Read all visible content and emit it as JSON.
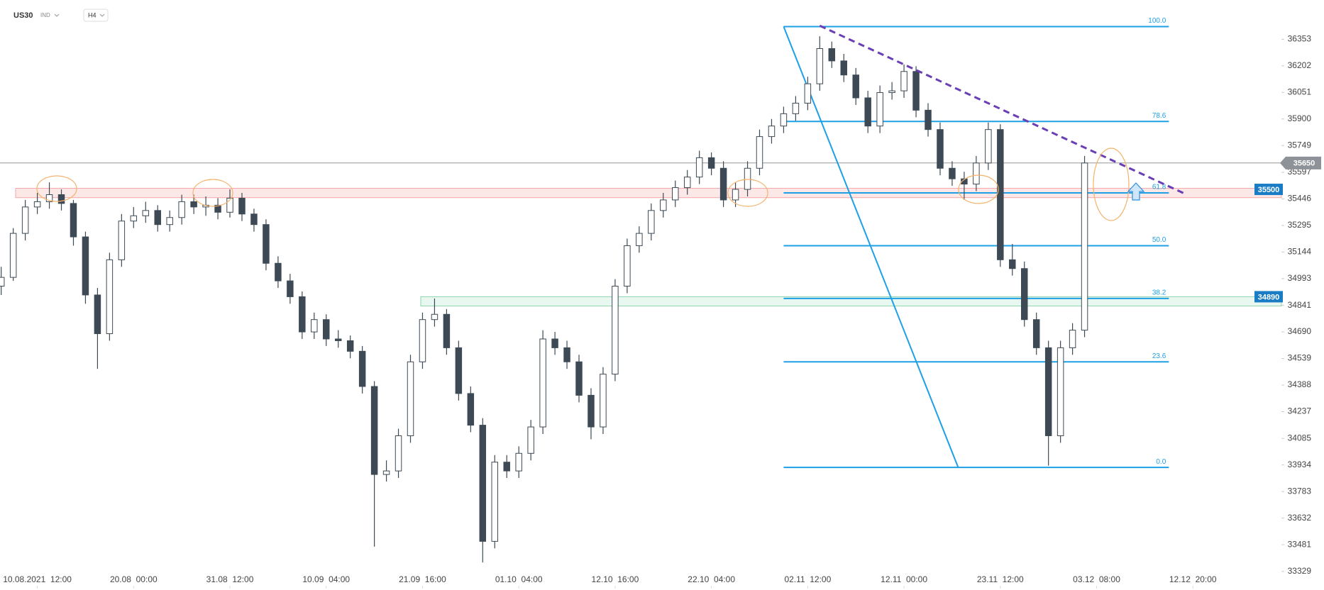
{
  "header": {
    "symbol": "US30",
    "market": "IND",
    "interval": "H4"
  },
  "chart_data": {
    "type": "candlestick",
    "ylim": [
      33300,
      36560
    ],
    "xlim": [
      -0.1,
      106
    ],
    "yticks": [
      36353,
      36202,
      36051,
      35900,
      35749,
      35597,
      35446,
      35295,
      35144,
      34993,
      34841,
      34690,
      34539,
      34388,
      34237,
      34085,
      33934,
      33783,
      33632,
      33481,
      33329
    ],
    "xticks": [
      {
        "value": 3,
        "label": "10.08.2021  12:00"
      },
      {
        "value": 11,
        "label": "20.08  00:00"
      },
      {
        "value": 19,
        "label": "31.08  12:00"
      },
      {
        "value": 27,
        "label": "10.09  04:00"
      },
      {
        "value": 35,
        "label": "21.09  16:00"
      },
      {
        "value": 43,
        "label": "01.10  04:00"
      },
      {
        "value": 51,
        "label": "12.10  16:00"
      },
      {
        "value": 59,
        "label": "22.10  04:00"
      },
      {
        "value": 67,
        "label": "02.11  12:00"
      },
      {
        "value": 75,
        "label": "12.11  00:00"
      },
      {
        "value": 83,
        "label": "23.11  12:00"
      },
      {
        "value": 91,
        "label": "03.12  08:00"
      },
      {
        "value": 99,
        "label": "12.12  20:00"
      }
    ],
    "up_color": "#ffffff",
    "down_color": "#3d4a55",
    "wick_color": "#3d4a55",
    "candles": [
      [
        34950,
        35060,
        34900,
        35000
      ],
      [
        35000,
        35280,
        34980,
        35250
      ],
      [
        35250,
        35440,
        35210,
        35400
      ],
      [
        35400,
        35480,
        35360,
        35430
      ],
      [
        35430,
        35540,
        35390,
        35470
      ],
      [
        35470,
        35500,
        35380,
        35420
      ],
      [
        35420,
        35440,
        35180,
        35230
      ],
      [
        35230,
        35260,
        34850,
        34900
      ],
      [
        34900,
        34940,
        34480,
        34680
      ],
      [
        34680,
        35140,
        34640,
        35100
      ],
      [
        35100,
        35360,
        35060,
        35320
      ],
      [
        35320,
        35400,
        35280,
        35350
      ],
      [
        35350,
        35430,
        35310,
        35380
      ],
      [
        35380,
        35410,
        35260,
        35300
      ],
      [
        35300,
        35380,
        35260,
        35340
      ],
      [
        35340,
        35470,
        35300,
        35430
      ],
      [
        35430,
        35470,
        35360,
        35400
      ],
      [
        35400,
        35460,
        35350,
        35410
      ],
      [
        35410,
        35450,
        35330,
        35370
      ],
      [
        35370,
        35500,
        35340,
        35450
      ],
      [
        35450,
        35480,
        35320,
        35360
      ],
      [
        35360,
        35390,
        35260,
        35300
      ],
      [
        35300,
        35330,
        35040,
        35080
      ],
      [
        35080,
        35120,
        34940,
        34980
      ],
      [
        34980,
        35020,
        34850,
        34890
      ],
      [
        34890,
        34920,
        34650,
        34690
      ],
      [
        34690,
        34800,
        34650,
        34760
      ],
      [
        34760,
        34790,
        34610,
        34650
      ],
      [
        34650,
        34700,
        34600,
        34640
      ],
      [
        34640,
        34670,
        34540,
        34580
      ],
      [
        34580,
        34610,
        34340,
        34380
      ],
      [
        34380,
        34410,
        33470,
        33880
      ],
      [
        33880,
        33960,
        33840,
        33900
      ],
      [
        33900,
        34140,
        33860,
        34100
      ],
      [
        34100,
        34560,
        34060,
        34520
      ],
      [
        34520,
        34800,
        34480,
        34760
      ],
      [
        34760,
        34880,
        34720,
        34790
      ],
      [
        34790,
        34820,
        34560,
        34600
      ],
      [
        34600,
        34640,
        34300,
        34340
      ],
      [
        34340,
        34380,
        34120,
        34160
      ],
      [
        34160,
        34200,
        33380,
        33500
      ],
      [
        33500,
        33990,
        33460,
        33950
      ],
      [
        33950,
        33990,
        33860,
        33900
      ],
      [
        33900,
        34040,
        33860,
        34000
      ],
      [
        34000,
        34190,
        33960,
        34150
      ],
      [
        34150,
        34700,
        34110,
        34650
      ],
      [
        34650,
        34690,
        34560,
        34600
      ],
      [
        34600,
        34640,
        34480,
        34520
      ],
      [
        34520,
        34560,
        34290,
        34330
      ],
      [
        34330,
        34370,
        34080,
        34150
      ],
      [
        34150,
        34490,
        34110,
        34450
      ],
      [
        34450,
        34990,
        34410,
        34950
      ],
      [
        34950,
        35220,
        34910,
        35180
      ],
      [
        35180,
        35290,
        35140,
        35250
      ],
      [
        35250,
        35420,
        35210,
        35380
      ],
      [
        35380,
        35480,
        35340,
        35440
      ],
      [
        35440,
        35550,
        35400,
        35510
      ],
      [
        35510,
        35610,
        35470,
        35570
      ],
      [
        35570,
        35720,
        35530,
        35680
      ],
      [
        35680,
        35710,
        35580,
        35620
      ],
      [
        35620,
        35660,
        35400,
        35440
      ],
      [
        35440,
        35540,
        35400,
        35500
      ],
      [
        35500,
        35660,
        35460,
        35620
      ],
      [
        35620,
        35840,
        35580,
        35800
      ],
      [
        35800,
        35900,
        35760,
        35860
      ],
      [
        35860,
        35970,
        35820,
        35930
      ],
      [
        35930,
        36030,
        35890,
        35990
      ],
      [
        35990,
        36140,
        35950,
        36100
      ],
      [
        36100,
        36370,
        36060,
        36300
      ],
      [
        36300,
        36340,
        36190,
        36230
      ],
      [
        36230,
        36270,
        36110,
        36150
      ],
      [
        36150,
        36190,
        35980,
        36020
      ],
      [
        36020,
        36060,
        35820,
        35860
      ],
      [
        35860,
        36090,
        35820,
        36050
      ],
      [
        36050,
        36110,
        36010,
        36060
      ],
      [
        36060,
        36210,
        36020,
        36170
      ],
      [
        36170,
        36200,
        35910,
        35950
      ],
      [
        35950,
        35990,
        35800,
        35840
      ],
      [
        35840,
        35880,
        35580,
        35620
      ],
      [
        35620,
        35660,
        35520,
        35560
      ],
      [
        35560,
        35600,
        35440,
        35530
      ],
      [
        35530,
        35690,
        35490,
        35650
      ],
      [
        35650,
        35880,
        35610,
        35840
      ],
      [
        35840,
        35870,
        35060,
        35100
      ],
      [
        35100,
        35190,
        35010,
        35050
      ],
      [
        35050,
        35090,
        34720,
        34760
      ],
      [
        34760,
        34800,
        34560,
        34600
      ],
      [
        34600,
        34640,
        33930,
        34100
      ],
      [
        34100,
        34640,
        34060,
        34600
      ],
      [
        34600,
        34740,
        34560,
        34700
      ],
      [
        34700,
        35690,
        34660,
        35650
      ]
    ],
    "last_price": 35650,
    "zones": [
      {
        "value": 35500,
        "high": 35506,
        "low": 35453,
        "fill": "#fde8e8",
        "stroke": "#f4a6a6",
        "badge": "#1a7cc4"
      },
      {
        "value": 34890,
        "high": 34890,
        "low": 34837,
        "fill": "#e8f7ef",
        "stroke": "#8fd4ae",
        "badge": "#1a7cc4"
      }
    ],
    "fib": {
      "color": "#1ea0e6",
      "x_range": [
        65,
        97
      ],
      "swing": [
        [
          65,
          36425
        ],
        [
          79.5,
          33920
        ]
      ],
      "levels": [
        {
          "value": 36425,
          "label": "100.0"
        },
        {
          "value": 35886,
          "label": "78.6"
        },
        {
          "value": 35480,
          "label": "61.8"
        },
        {
          "value": 35180,
          "label": "50.0"
        },
        {
          "value": 34880,
          "label": "38.2"
        },
        {
          "value": 34520,
          "label": "23.6"
        },
        {
          "value": 33920,
          "label": "0.0"
        }
      ]
    },
    "trendline": {
      "color": "#6a3fb5",
      "points": [
        [
          68,
          36430
        ],
        [
          98.5,
          35470
        ]
      ]
    }
  }
}
